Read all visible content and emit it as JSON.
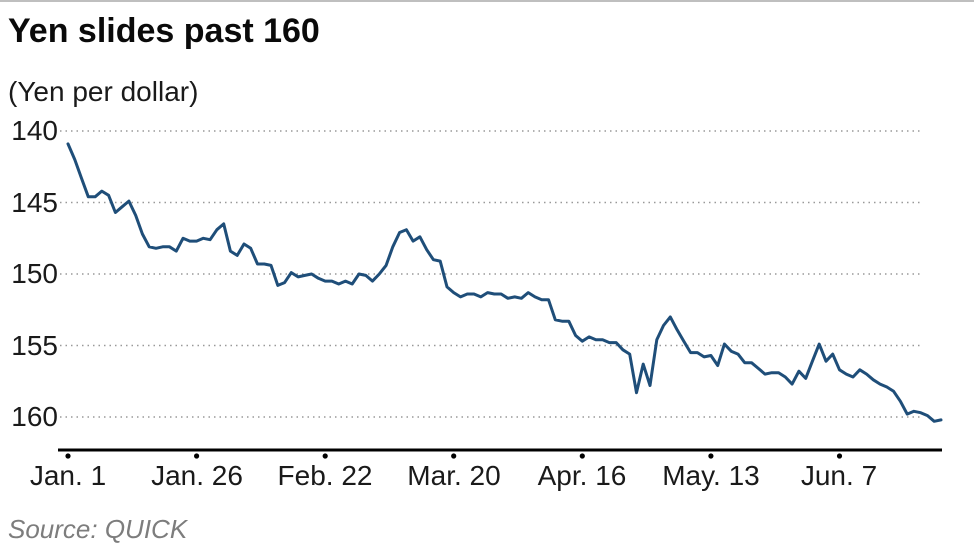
{
  "header": {
    "title": "Yen slides past 160",
    "subtitle": "(Yen per dollar)"
  },
  "footer": {
    "source": "Source: QUICK"
  },
  "colors": {
    "line": "#1f4e79",
    "grid": "#999999",
    "axis": "#000000",
    "text": "#1a1a1a",
    "source_text": "#7d7d7d"
  },
  "chart_data": {
    "type": "line",
    "title": "Yen slides past 160",
    "ylabel": "(Yen per dollar)",
    "xlabel": "",
    "grid": "dotted-horizontal",
    "legend": "none",
    "y_axis": {
      "ticks": [
        140,
        145,
        150,
        155,
        160
      ],
      "inverted": true,
      "range": [
        140,
        161
      ]
    },
    "x_axis": {
      "unit": "business days, Jan 1 - Jun 28",
      "ticks": [
        {
          "label": "Jan. 1",
          "index": 0
        },
        {
          "label": "Jan. 26",
          "index": 19
        },
        {
          "label": "Feb. 22",
          "index": 38
        },
        {
          "label": "Mar. 20",
          "index": 57
        },
        {
          "label": "Apr. 16",
          "index": 76
        },
        {
          "label": "May. 13",
          "index": 95
        },
        {
          "label": "Jun. 7",
          "index": 114
        }
      ]
    },
    "series": [
      {
        "name": "Yen per dollar",
        "color": "#1f4e79",
        "values": [
          140.9,
          142.0,
          143.3,
          144.6,
          144.6,
          144.2,
          144.5,
          145.7,
          145.3,
          144.9,
          145.9,
          147.2,
          148.1,
          148.2,
          148.1,
          148.1,
          148.4,
          147.5,
          147.7,
          147.7,
          147.5,
          147.6,
          146.9,
          146.5,
          148.4,
          148.7,
          147.9,
          148.2,
          149.3,
          149.3,
          149.4,
          150.8,
          150.6,
          149.9,
          150.2,
          150.1,
          150.0,
          150.3,
          150.5,
          150.5,
          150.7,
          150.5,
          150.7,
          150.0,
          150.1,
          150.5,
          150.0,
          149.4,
          148.1,
          147.1,
          146.9,
          147.7,
          147.4,
          148.3,
          149.0,
          149.1,
          150.9,
          151.3,
          151.6,
          151.4,
          151.4,
          151.6,
          151.3,
          151.4,
          151.4,
          151.7,
          151.6,
          151.7,
          151.3,
          151.6,
          151.8,
          151.8,
          153.2,
          153.3,
          153.3,
          154.3,
          154.7,
          154.4,
          154.6,
          154.6,
          154.8,
          154.8,
          155.3,
          155.6,
          158.3,
          156.3,
          157.8,
          154.6,
          153.6,
          153.0,
          153.9,
          154.7,
          155.5,
          155.5,
          155.8,
          155.7,
          156.4,
          154.9,
          155.4,
          155.6,
          156.2,
          156.2,
          156.6,
          157.0,
          156.9,
          156.9,
          157.2,
          157.7,
          156.8,
          157.3,
          156.1,
          154.9,
          156.1,
          155.6,
          156.7,
          157.0,
          157.2,
          156.7,
          157.0,
          157.4,
          157.7,
          157.9,
          158.2,
          158.9,
          159.8,
          159.6,
          159.7,
          159.9,
          160.3,
          160.2
        ]
      }
    ]
  }
}
